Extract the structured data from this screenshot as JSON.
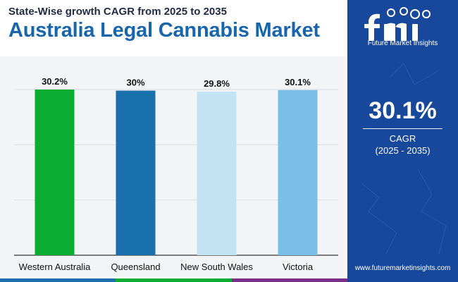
{
  "header": {
    "subtitle": "State-Wise growth CAGR from 2025 to 2035",
    "title": "Australia Legal Cannabis Market"
  },
  "chart_data": {
    "type": "bar",
    "categories": [
      "Western Australia",
      "Queensland",
      "New South Wales",
      "Victoria"
    ],
    "values": [
      30.2,
      30.0,
      29.8,
      30.1
    ],
    "data_labels": [
      "30.2%",
      "30%",
      "29.8%",
      "30.1%"
    ],
    "colors": [
      "#0aad32",
      "#1a6fad",
      "#c3e3f5",
      "#79bfe6"
    ],
    "title": "",
    "xlabel": "",
    "ylabel": "",
    "ylim": [
      0,
      30.2
    ],
    "grid": true,
    "legend": "none"
  },
  "side_panel": {
    "logo_text": "Future Market Insights",
    "stat_value": "30.1%",
    "stat_label": "CAGR",
    "stat_period": "(2025 - 2035)",
    "website": "www.futuremarketinsights.com",
    "background_color": "#17489b"
  },
  "footer": {
    "strip_colors": [
      "#1a6fad",
      "#0aad32",
      "#7a2f8c"
    ]
  }
}
